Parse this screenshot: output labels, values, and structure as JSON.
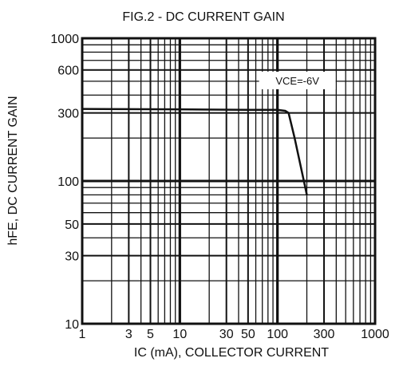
{
  "chart_data": {
    "type": "line",
    "title": "FIG.2 - DC CURRENT GAIN",
    "xlabel": "IC (mA), COLLECTOR CURRENT",
    "ylabel": "hFE, DC CURRENT GAIN",
    "xscale": "log",
    "yscale": "log",
    "xlim": [
      1,
      1000
    ],
    "ylim": [
      10,
      1000
    ],
    "grid": true,
    "x_ticks": [
      {
        "value": 1,
        "label": "1"
      },
      {
        "value": 3,
        "label": "3"
      },
      {
        "value": 5,
        "label": "5"
      },
      {
        "value": 10,
        "label": "10"
      },
      {
        "value": 30,
        "label": "30"
      },
      {
        "value": 50,
        "label": "50"
      },
      {
        "value": 100,
        "label": "100"
      },
      {
        "value": 300,
        "label": "300"
      },
      {
        "value": 1000,
        "label": "1000"
      }
    ],
    "y_ticks": [
      {
        "value": 10,
        "label": "10"
      },
      {
        "value": 30,
        "label": "30"
      },
      {
        "value": 50,
        "label": "50"
      },
      {
        "value": 100,
        "label": "100"
      },
      {
        "value": 300,
        "label": "300"
      },
      {
        "value": 600,
        "label": "600"
      },
      {
        "value": 1000,
        "label": "1000"
      }
    ],
    "series": [
      {
        "x": [
          1,
          10,
          50,
          100,
          120,
          130,
          150,
          200
        ],
        "y": [
          320,
          318,
          315,
          315,
          310,
          300,
          200,
          80
        ],
        "color": "#111111"
      }
    ],
    "annotations": [
      {
        "text": "VCE=-6V",
        "x": 160,
        "y": 500
      }
    ]
  }
}
